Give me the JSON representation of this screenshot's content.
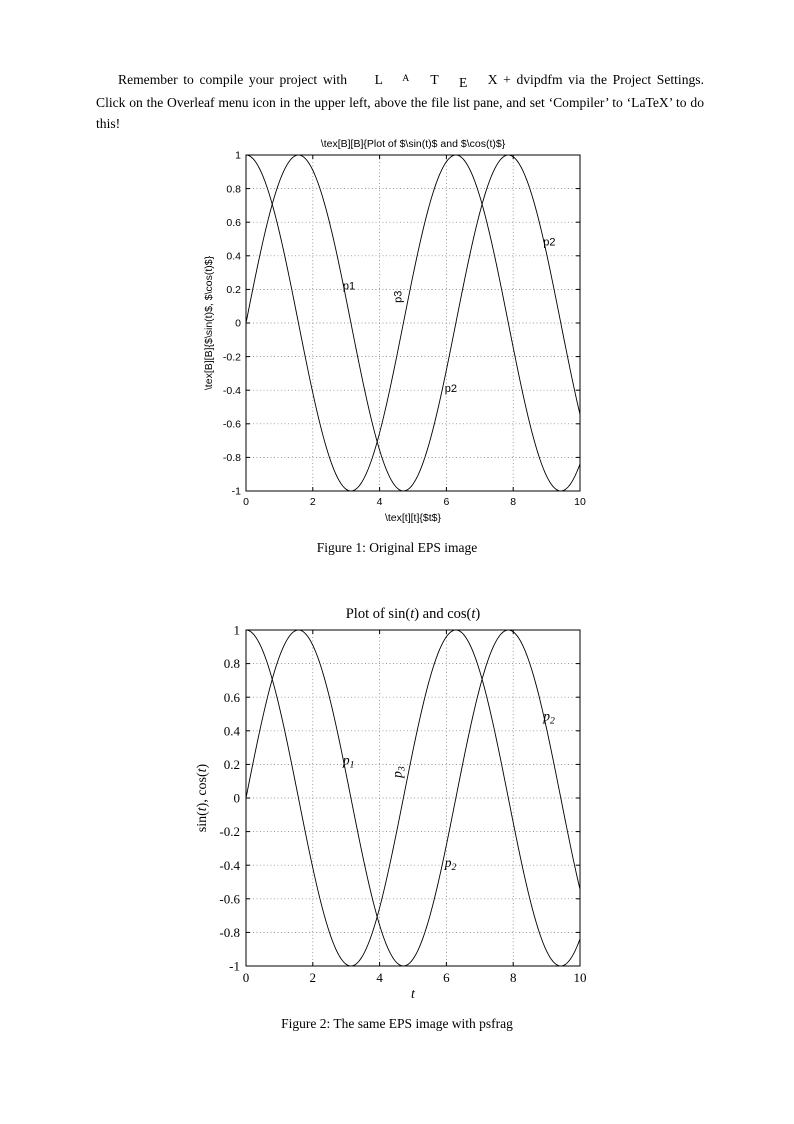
{
  "intro": {
    "part1": "Remember to compile your project with ",
    "logo": [
      "L",
      "A",
      "T",
      "E",
      "X"
    ],
    "part2": " + dvipdfm via the Project Settings. Click on the Overleaf menu icon in the upper left, above the file list pane, and set ‘Compiler’ to ‘LaTeX’ to do this!"
  },
  "chart_data": [
    {
      "name": "figure-1-original-eps",
      "type": "line",
      "font": "sans",
      "title_parts": [
        {
          "t": "\\tex[B][B]{Plot of $\\sin(t)$ and $\\cos(t)$}"
        }
      ],
      "xlabel_parts": [
        {
          "t": "\\tex[t][t]{$t$}"
        }
      ],
      "ylabel_parts": [
        {
          "t": "\\tex[B][B]{$\\sin(t)$, $\\cos(t)$}"
        }
      ],
      "xlim": [
        0,
        10
      ],
      "ylim": [
        -1,
        1
      ],
      "x_ticks": [
        0,
        2,
        4,
        6,
        8,
        10
      ],
      "x_tick_labels": [
        "0",
        "2",
        "4",
        "6",
        "8",
        "10"
      ],
      "y_ticks": [
        -1,
        -0.8,
        -0.6,
        -0.4,
        -0.2,
        0,
        0.2,
        0.4,
        0.6,
        0.8,
        1
      ],
      "y_tick_labels": [
        "-1",
        "-0.8",
        "-0.6",
        "-0.4",
        "-0.2",
        "0",
        "0.2",
        "0.4",
        "0.6",
        "0.8",
        "1"
      ],
      "grid": true,
      "legend": "none",
      "series": [
        {
          "name": "sin(t)",
          "fn": "sin",
          "domain": [
            0,
            10
          ]
        },
        {
          "name": "cos(t)",
          "fn": "cos",
          "domain": [
            0,
            10
          ]
        }
      ],
      "labels": [
        {
          "text": "p1",
          "x": 2.9,
          "y": 0.2,
          "rotate": 0
        },
        {
          "text": "p3",
          "x": 4.65,
          "y": 0.12,
          "rotate": -90
        },
        {
          "text": "p2",
          "x": 5.95,
          "y": -0.41,
          "rotate": 0
        },
        {
          "text": "p2",
          "x": 8.9,
          "y": 0.46,
          "rotate": 0
        }
      ],
      "caption": "Figure 1: Original EPS image"
    },
    {
      "name": "figure-2-psfrag",
      "type": "line",
      "font": "serif",
      "title_parts": [
        {
          "t": "Plot of sin("
        },
        {
          "t": "t",
          "i": true
        },
        {
          "t": ") and cos("
        },
        {
          "t": "t",
          "i": true
        },
        {
          "t": ")"
        }
      ],
      "xlabel_parts": [
        {
          "t": "t",
          "i": true
        }
      ],
      "ylabel_parts": [
        {
          "t": "sin("
        },
        {
          "t": "t",
          "i": true
        },
        {
          "t": "), cos("
        },
        {
          "t": "t",
          "i": true
        },
        {
          "t": ")"
        }
      ],
      "xlim": [
        0,
        10
      ],
      "ylim": [
        -1,
        1
      ],
      "x_ticks": [
        0,
        2,
        4,
        6,
        8,
        10
      ],
      "x_tick_labels": [
        "0",
        "2",
        "4",
        "6",
        "8",
        "10"
      ],
      "y_ticks": [
        -1,
        -0.8,
        -0.6,
        -0.4,
        -0.2,
        0,
        0.2,
        0.4,
        0.6,
        0.8,
        1
      ],
      "y_tick_labels": [
        "-1",
        "-0.8",
        "-0.6",
        "-0.4",
        "-0.2",
        "0",
        "0.2",
        "0.4",
        "0.6",
        "0.8",
        "1"
      ],
      "grid": true,
      "legend": "none",
      "series": [
        {
          "name": "sin(t)",
          "fn": "sin",
          "domain": [
            0,
            10
          ]
        },
        {
          "name": "cos(t)",
          "fn": "cos",
          "domain": [
            0,
            10
          ]
        }
      ],
      "labels": [
        {
          "base": "p",
          "sub": "1",
          "x": 2.9,
          "y": 0.2,
          "rotate": 0
        },
        {
          "base": "p",
          "sub": "3",
          "x": 4.65,
          "y": 0.12,
          "rotate": -90
        },
        {
          "base": "p",
          "sub": "2",
          "x": 5.95,
          "y": -0.41,
          "rotate": 0
        },
        {
          "base": "p",
          "sub": "2",
          "x": 8.9,
          "y": 0.46,
          "rotate": 0
        }
      ],
      "caption": "Figure 2: The same EPS image with psfrag"
    }
  ]
}
